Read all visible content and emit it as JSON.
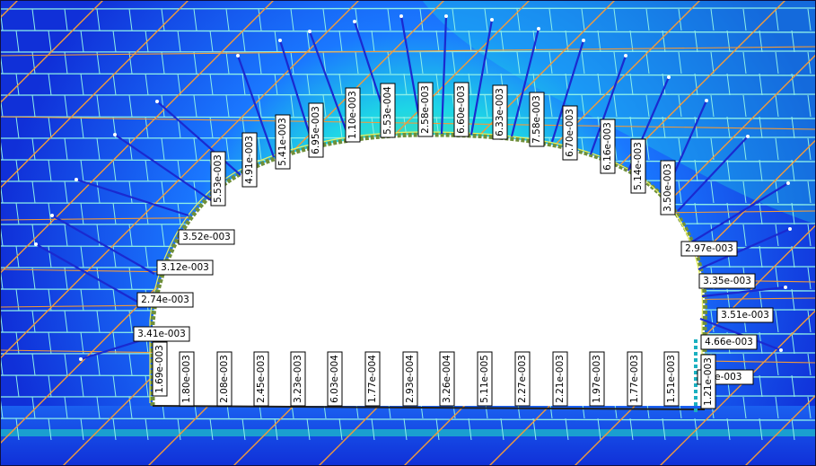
{
  "colors": {
    "field_deep": "#1030d8",
    "field_mid": "#1a78ff",
    "field_cyan": "#1ed6e6",
    "field_green": "#4fe39a",
    "field_yellow": "#e8f060",
    "grid_line": "#8ff0e8",
    "joint_line": "#f29a3a",
    "bolt": "#1a2ad0",
    "bolt_head": "#ffffff",
    "liner": "#6f8f3a",
    "liner_light": "#c8d84a",
    "label_bg": "#ffffff",
    "label_border": "#000000",
    "cavity": "#ffffff",
    "floor_beam": "#1a9fd0"
  },
  "arch_labels": [
    "3.41e-003",
    "2.74e-003",
    "3.12e-003",
    "3.52e-003",
    "5.53e-003",
    "4.91e-003",
    "5.41e-003",
    "6.95e-003",
    "1.10e-003",
    "5.53e-004",
    "2.58e-003",
    "6.60e-003",
    "6.33e-003",
    "7.58e-003",
    "6.70e-003",
    "6.16e-003",
    "5.14e-003",
    "3.50e-003",
    "2.97e-003",
    "3.35e-003",
    "3.51e-003",
    "4.66e-003",
    "9e-003"
  ],
  "floor_labels": [
    "1.69e-003",
    "1.80e-003",
    "2.08e-003",
    "2.45e-003",
    "3.23e-003",
    "6.03e-004",
    "1.77e-004",
    "2.93e-004",
    "3.26e-004",
    "5.11e-005",
    "2.27e-003",
    "2.21e-003",
    "1.97e-003",
    "1.77e-003",
    "1.51e-003",
    "1.21e-003"
  ]
}
